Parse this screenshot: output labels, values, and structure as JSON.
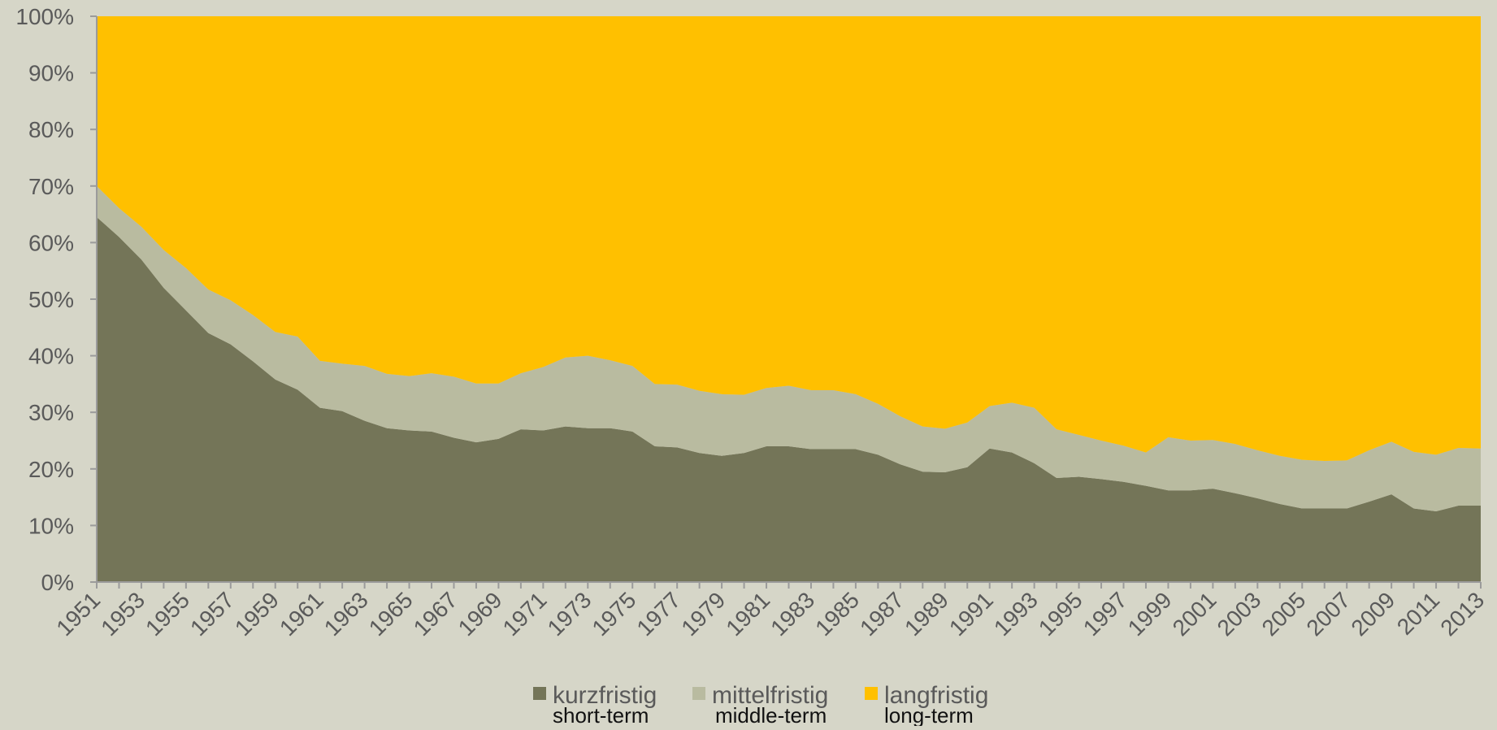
{
  "chart_data": {
    "type": "area",
    "stacked": "percent",
    "title": "",
    "xlabel": "",
    "ylabel": "",
    "ylim": [
      0,
      100
    ],
    "y_ticks": [
      "0%",
      "10%",
      "20%",
      "30%",
      "40%",
      "50%",
      "60%",
      "70%",
      "80%",
      "90%",
      "100%"
    ],
    "x_ticks": [
      "1951",
      "1953",
      "1955",
      "1957",
      "1959",
      "1961",
      "1963",
      "1965",
      "1967",
      "1969",
      "1971",
      "1973",
      "1975",
      "1977",
      "1979",
      "1981",
      "1983",
      "1985",
      "1987",
      "1989",
      "1991",
      "1993",
      "1995",
      "1997",
      "1999",
      "2001",
      "2003",
      "2005",
      "2007",
      "2009",
      "2011",
      "2013"
    ],
    "x": [
      1951,
      1952,
      1953,
      1954,
      1955,
      1956,
      1957,
      1958,
      1959,
      1960,
      1961,
      1962,
      1963,
      1964,
      1965,
      1966,
      1967,
      1968,
      1969,
      1970,
      1971,
      1972,
      1973,
      1974,
      1975,
      1976,
      1977,
      1978,
      1979,
      1980,
      1981,
      1982,
      1983,
      1984,
      1985,
      1986,
      1987,
      1988,
      1989,
      1990,
      1991,
      1992,
      1993,
      1994,
      1995,
      1996,
      1997,
      1998,
      1999,
      2000,
      2001,
      2002,
      2003,
      2004,
      2005,
      2006,
      2007,
      2008,
      2009,
      2010,
      2011,
      2012,
      2013
    ],
    "series": [
      {
        "name": "kurzfristig",
        "name_en": "short-term",
        "color": "#747558",
        "values": [
          64.5,
          61,
          57,
          52,
          48,
          44,
          42,
          39,
          35.8,
          34,
          30.8,
          30.2,
          28.5,
          27.2,
          26.8,
          26.6,
          25.5,
          24.7,
          25.3,
          27,
          26.8,
          27.5,
          27.2,
          27.2,
          26.6,
          24,
          23.8,
          22.8,
          22.3,
          22.8,
          24,
          24,
          23.5,
          23.5,
          23.5,
          22.5,
          20.8,
          19.5,
          19.4,
          20.3,
          23.6,
          22.9,
          21,
          18.4,
          18.6,
          18.2,
          17.7,
          17,
          16.2,
          16.2,
          16.5,
          15.7,
          14.8,
          13.8,
          13,
          13,
          13,
          14.2,
          15.5,
          13,
          12.5,
          13.5,
          13.5
        ]
      },
      {
        "name": "mittelfristig",
        "name_en": "middle-term",
        "color": "#b9bba0",
        "values": [
          5.5,
          5.1,
          5.8,
          6.7,
          7.5,
          7.7,
          7.8,
          8.2,
          8.4,
          9.4,
          8.3,
          8.4,
          9.7,
          9.6,
          9.6,
          10.3,
          10.8,
          10.4,
          9.8,
          9.9,
          11.2,
          12.2,
          12.8,
          12,
          11.6,
          11,
          11.1,
          11,
          10.9,
          10.3,
          10.3,
          10.7,
          10.4,
          10.4,
          9.7,
          9,
          8.5,
          8,
          7.7,
          7.9,
          7.5,
          8.8,
          9.8,
          8.6,
          7.4,
          6.8,
          6.4,
          5.9,
          9.4,
          8.8,
          8.6,
          8.7,
          8.5,
          8.5,
          8.6,
          8.4,
          8.5,
          9.1,
          9.3,
          10,
          10,
          10.2,
          10.1
        ]
      },
      {
        "name": "langfristig",
        "name_en": "long-term",
        "color": "#ffc000",
        "values": [
          30,
          33.9,
          37.2,
          41.3,
          44.5,
          48.3,
          50.2,
          52.8,
          55.8,
          56.6,
          60.9,
          61.4,
          61.8,
          63.2,
          63.6,
          63.1,
          63.7,
          64.9,
          64.9,
          63.1,
          62,
          60.3,
          60,
          60.8,
          61.8,
          65,
          65.1,
          66.2,
          66.8,
          66.9,
          65.7,
          65.3,
          66.1,
          66.1,
          66.8,
          68.5,
          70.7,
          72.5,
          72.9,
          71.8,
          68.9,
          68.3,
          69.2,
          73,
          74,
          75,
          75.9,
          77.1,
          74.4,
          75,
          74.9,
          75.6,
          76.7,
          77.7,
          78.4,
          78.6,
          78.5,
          76.7,
          75.2,
          77,
          77.5,
          76.3,
          76.4
        ]
      }
    ],
    "legend": {
      "position": "bottom",
      "items": [
        {
          "label": "kurzfristig",
          "sublabel": "short-term",
          "color": "#747558"
        },
        {
          "label": "mittelfristig",
          "sublabel": "middle-term",
          "color": "#b9bba0"
        },
        {
          "label": "langfristig",
          "sublabel": "long-term",
          "color": "#ffc000"
        }
      ]
    },
    "grid": false,
    "colors": {
      "background": "#d6d6c8",
      "axis": "#9b9b9b",
      "tick_text": "#5a5a5a"
    }
  }
}
